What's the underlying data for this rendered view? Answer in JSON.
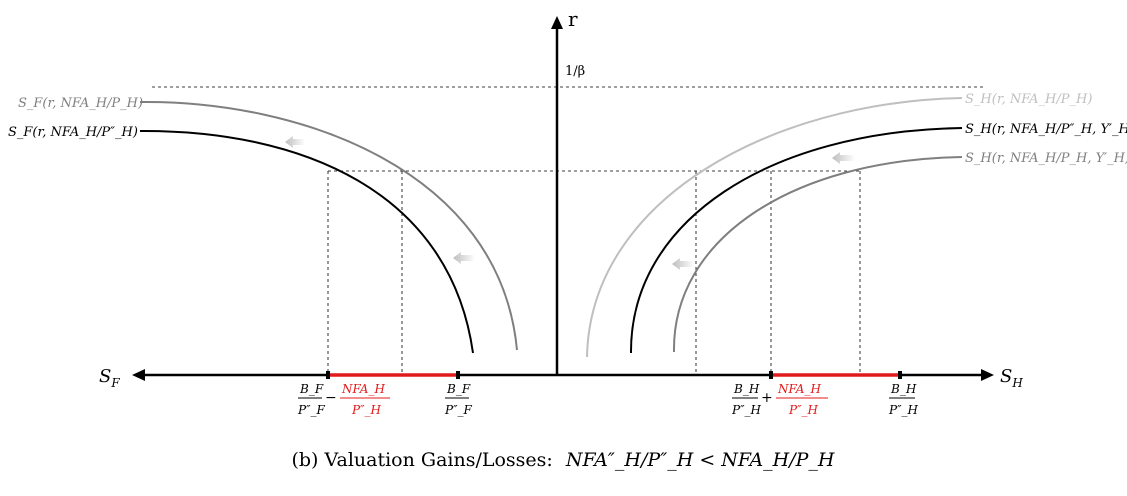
{
  "axes": {
    "vertical_label": "r",
    "left_label": "S_F",
    "right_label": "S_H",
    "beta_label": "1/β"
  },
  "curves": {
    "sf_old": "S_F(r, NFA_H/P_H)",
    "sf_new": "S_F(r, NFA_H/P″_H)",
    "sh_old": "S_H(r, NFA_H/P_H)",
    "sh_new": "S_H(r, NFA_H/P″_H, Y′_H)",
    "sh_mid": "S_H(r, NFA_H/P_H, Y′_H)"
  },
  "ticks": {
    "left_minus": {
      "num": "B_F",
      "den": "P″_F",
      "op": "−",
      "nfa_num": "NFA_H",
      "nfa_den": "P″_H"
    },
    "left_plain": {
      "num": "B_F",
      "den": "P″_F"
    },
    "right_plus": {
      "num": "B_H",
      "den": "P″_H",
      "op": "+",
      "nfa_num": "NFA_H",
      "nfa_den": "P″_H"
    },
    "right_plain": {
      "num": "B_H",
      "den": "P″_H"
    }
  },
  "caption": {
    "prefix": "(b) Valuation Gains/Losses:",
    "math": "NFA″_H/P″_H < NFA_H/P_H"
  },
  "colors": {
    "black": "#000000",
    "dark_gray": "#7f7f7f",
    "light_gray": "#bfbfbf",
    "red": "#e11b1b",
    "arrow_gray": "#c8c8c8"
  }
}
